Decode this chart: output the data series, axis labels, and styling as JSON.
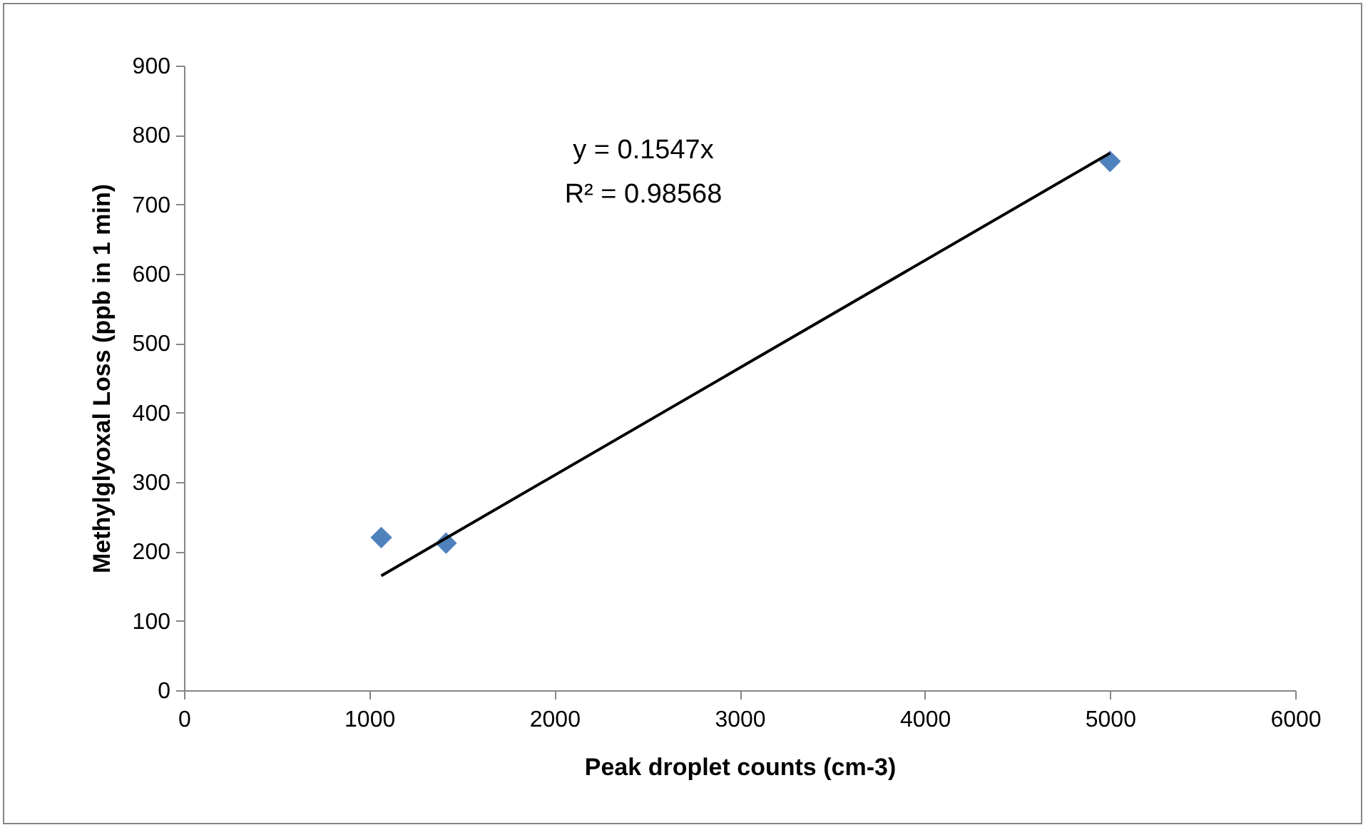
{
  "chart_data": {
    "type": "scatter",
    "xlabel": "Peak droplet counts (cm-3)",
    "ylabel": "Methylglyoxal Loss (ppb in 1 min)",
    "annotations": [
      "y = 0.1547x",
      "R² = 0.98568"
    ],
    "xlim": [
      0,
      6000
    ],
    "xticks": [
      0,
      1000,
      2000,
      3000,
      4000,
      5000,
      6000
    ],
    "ylim": [
      0,
      900
    ],
    "yticks": [
      0,
      100,
      200,
      300,
      400,
      500,
      600,
      700,
      800,
      900
    ],
    "grid": false,
    "legend": false,
    "series": [
      {
        "type": "scatter",
        "marker": "diamond",
        "color": "#4f81bd",
        "x": [
          1065,
          1415,
          5000
        ],
        "values": [
          220,
          212,
          762
        ]
      },
      {
        "type": "line",
        "color": "#000000",
        "line_style": "solid",
        "marker": "none",
        "x": [
          1065,
          5000
        ],
        "values": [
          165,
          774
        ]
      }
    ]
  }
}
